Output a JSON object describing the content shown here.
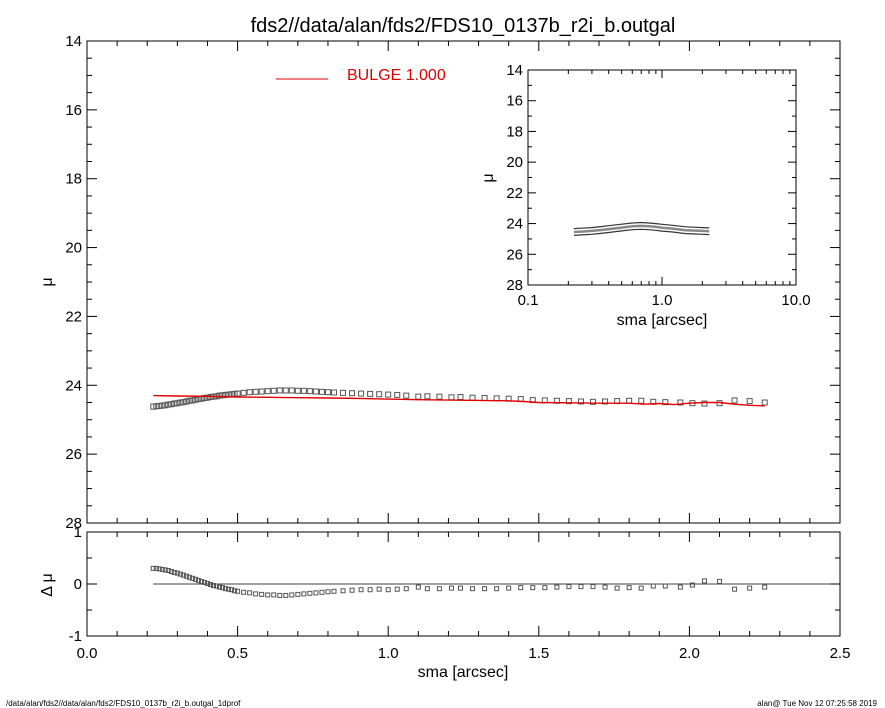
{
  "title": "fds2//data/alan/fds2/FDS10_0137b_r2i_b.outgal",
  "footer": {
    "left": "/data/alan/fds2//data/alan/fds2/FDS10_0137b_r2i_b.outgal_1dprof",
    "right": "alan@  Tue Nov 12 07:25:58 2019"
  },
  "colors": {
    "model": "#e00000",
    "data": "#555555",
    "axes": "#000000"
  },
  "chart_data": [
    {
      "id": "main",
      "type": "scatter",
      "ylabel": "μ",
      "xlim": [
        0.0,
        2.5
      ],
      "ylim": [
        28,
        14
      ],
      "y_inverted": true,
      "yticks": [
        "14",
        "16",
        "18",
        "20",
        "22",
        "24",
        "26",
        "28"
      ],
      "legend": {
        "label": "BULGE  1.000",
        "placement": "top"
      },
      "series": [
        {
          "kind": "points",
          "x": [
            0.22,
            0.23,
            0.24,
            0.25,
            0.26,
            0.27,
            0.28,
            0.29,
            0.3,
            0.31,
            0.32,
            0.33,
            0.34,
            0.35,
            0.36,
            0.37,
            0.38,
            0.39,
            0.4,
            0.41,
            0.42,
            0.43,
            0.44,
            0.45,
            0.46,
            0.47,
            0.48,
            0.49,
            0.5,
            0.52,
            0.54,
            0.56,
            0.58,
            0.6,
            0.62,
            0.64,
            0.66,
            0.68,
            0.7,
            0.72,
            0.74,
            0.76,
            0.78,
            0.8,
            0.82,
            0.85,
            0.88,
            0.91,
            0.94,
            0.97,
            1.0,
            1.03,
            1.06,
            1.1,
            1.13,
            1.17,
            1.21,
            1.24,
            1.28,
            1.32,
            1.36,
            1.4,
            1.44,
            1.48,
            1.52,
            1.56,
            1.6,
            1.64,
            1.68,
            1.72,
            1.76,
            1.8,
            1.84,
            1.88,
            1.92,
            1.97,
            2.01,
            2.05,
            2.1,
            2.15,
            2.2,
            2.25
          ],
          "y": [
            24.62,
            24.61,
            24.6,
            24.59,
            24.58,
            24.56,
            24.55,
            24.53,
            24.52,
            24.5,
            24.49,
            24.47,
            24.45,
            24.44,
            24.42,
            24.4,
            24.39,
            24.37,
            24.36,
            24.34,
            24.33,
            24.32,
            24.3,
            24.29,
            24.28,
            24.27,
            24.26,
            24.25,
            24.24,
            24.22,
            24.2,
            24.19,
            24.18,
            24.17,
            24.16,
            24.15,
            24.15,
            24.15,
            24.16,
            24.16,
            24.17,
            24.18,
            24.19,
            24.2,
            24.21,
            24.22,
            24.23,
            24.24,
            24.25,
            24.26,
            24.27,
            24.28,
            24.3,
            24.33,
            24.32,
            24.33,
            24.35,
            24.34,
            24.36,
            24.37,
            24.38,
            24.39,
            24.4,
            24.43,
            24.44,
            24.45,
            24.46,
            24.47,
            24.48,
            24.47,
            24.46,
            24.45,
            24.45,
            24.48,
            24.49,
            24.5,
            24.52,
            24.53,
            24.52,
            24.44,
            24.46,
            24.5
          ]
        },
        {
          "kind": "line",
          "name": "BULGE",
          "x": [
            0.22,
            0.3,
            0.4,
            0.5,
            0.6,
            0.7,
            0.8,
            0.9,
            1.0,
            1.1,
            1.2,
            1.3,
            1.4,
            1.45,
            1.5,
            1.6,
            1.7,
            1.8,
            1.85,
            1.9,
            1.95,
            2.0,
            2.05,
            2.1,
            2.15,
            2.2,
            2.25
          ],
          "y": [
            24.3,
            24.31,
            24.32,
            24.34,
            24.35,
            24.36,
            24.37,
            24.38,
            24.4,
            24.42,
            24.43,
            24.44,
            24.45,
            24.47,
            24.5,
            24.51,
            24.52,
            24.52,
            24.55,
            24.53,
            24.56,
            24.52,
            24.5,
            24.5,
            24.55,
            24.58,
            24.6
          ]
        }
      ]
    },
    {
      "id": "inset",
      "type": "scatter",
      "xlabel": "sma [arcsec]",
      "ylabel": "μ",
      "xscale": "log",
      "xlim": [
        0.1,
        10.0
      ],
      "ylim": [
        28,
        14
      ],
      "y_inverted": true,
      "xticks": [
        "0.1",
        "1.0",
        "10.0"
      ],
      "yticks": [
        "14",
        "16",
        "18",
        "20",
        "22",
        "24",
        "26",
        "28"
      ],
      "series": [
        {
          "kind": "band",
          "x": [
            0.22,
            0.25,
            0.3,
            0.35,
            0.4,
            0.5,
            0.6,
            0.7,
            0.8,
            0.9,
            1.0,
            1.2,
            1.5,
            1.8,
            2.0,
            2.25
          ],
          "y": [
            24.55,
            24.52,
            24.48,
            24.42,
            24.36,
            24.26,
            24.18,
            24.15,
            24.18,
            24.22,
            24.27,
            24.33,
            24.43,
            24.46,
            24.48,
            24.5
          ]
        }
      ]
    },
    {
      "id": "residual",
      "type": "scatter",
      "xlabel": "sma [arcsec]",
      "ylabel": "Δ μ",
      "xlim": [
        0.0,
        2.5
      ],
      "ylim": [
        -1,
        1
      ],
      "xticks": [
        "0.0",
        "0.5",
        "1.0",
        "1.5",
        "2.0",
        "2.5"
      ],
      "yticks": [
        "1",
        "0",
        "-1"
      ],
      "series": [
        {
          "kind": "points",
          "x": [
            0.22,
            0.23,
            0.24,
            0.25,
            0.26,
            0.27,
            0.28,
            0.29,
            0.3,
            0.31,
            0.32,
            0.33,
            0.34,
            0.35,
            0.36,
            0.37,
            0.38,
            0.39,
            0.4,
            0.41,
            0.42,
            0.43,
            0.44,
            0.45,
            0.46,
            0.47,
            0.48,
            0.49,
            0.5,
            0.52,
            0.54,
            0.56,
            0.58,
            0.6,
            0.62,
            0.64,
            0.66,
            0.68,
            0.7,
            0.72,
            0.74,
            0.76,
            0.78,
            0.8,
            0.82,
            0.85,
            0.88,
            0.91,
            0.94,
            0.97,
            1.0,
            1.03,
            1.06,
            1.1,
            1.13,
            1.17,
            1.21,
            1.24,
            1.28,
            1.32,
            1.36,
            1.4,
            1.44,
            1.48,
            1.52,
            1.56,
            1.6,
            1.64,
            1.68,
            1.72,
            1.76,
            1.8,
            1.84,
            1.88,
            1.92,
            1.97,
            2.01,
            2.05,
            2.1,
            2.15,
            2.2,
            2.25
          ],
          "y": [
            0.3,
            0.3,
            0.29,
            0.28,
            0.27,
            0.26,
            0.24,
            0.22,
            0.21,
            0.19,
            0.17,
            0.15,
            0.13,
            0.11,
            0.09,
            0.07,
            0.05,
            0.03,
            0.01,
            -0.01,
            -0.03,
            -0.04,
            -0.06,
            -0.07,
            -0.09,
            -0.1,
            -0.11,
            -0.13,
            -0.14,
            -0.16,
            -0.17,
            -0.19,
            -0.2,
            -0.21,
            -0.21,
            -0.22,
            -0.22,
            -0.21,
            -0.2,
            -0.19,
            -0.18,
            -0.17,
            -0.16,
            -0.15,
            -0.14,
            -0.13,
            -0.12,
            -0.11,
            -0.11,
            -0.1,
            -0.11,
            -0.1,
            -0.09,
            -0.06,
            -0.09,
            -0.09,
            -0.08,
            -0.08,
            -0.09,
            -0.09,
            -0.09,
            -0.08,
            -0.07,
            -0.07,
            -0.07,
            -0.06,
            -0.05,
            -0.05,
            -0.05,
            -0.06,
            -0.08,
            -0.07,
            -0.08,
            -0.04,
            -0.04,
            -0.06,
            -0.02,
            0.06,
            0.05,
            -0.1,
            -0.08,
            -0.06
          ]
        }
      ],
      "reference_line": 0
    }
  ]
}
